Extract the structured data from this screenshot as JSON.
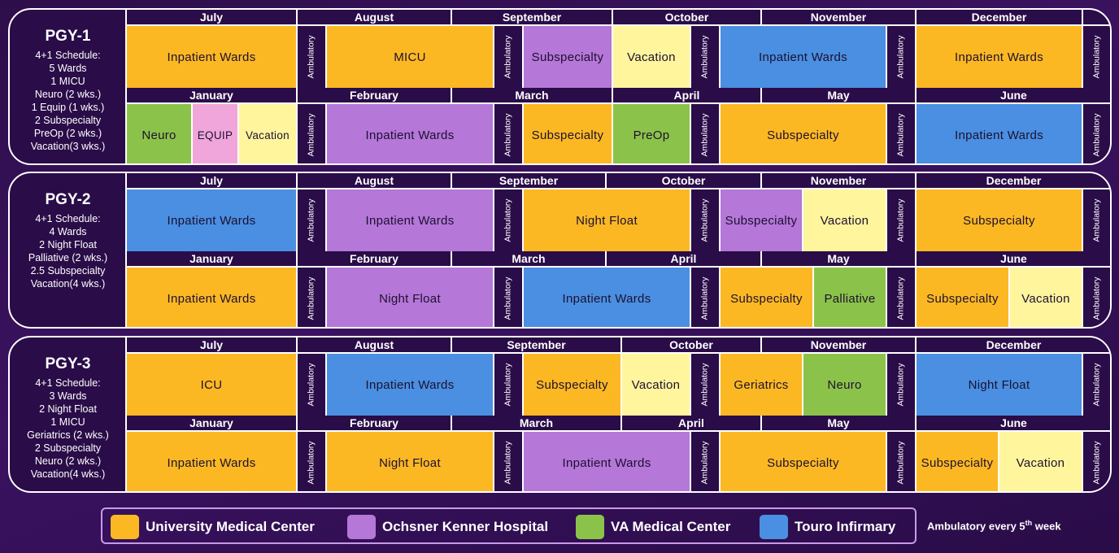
{
  "colors": {
    "umc": "#fcb823",
    "okh": "#b577d8",
    "va": "#8bc34a",
    "touro": "#4a8fe1",
    "vacation": "#fff59d",
    "equip": "#f0a6da"
  },
  "panels": [
    {
      "title": "PGY-1",
      "lines": [
        "4+1 Schedule:",
        "5 Wards",
        "1 MICU",
        "Neuro (2 wks.)",
        "1 Equip (1 wks.)",
        "2 Subspecialty",
        "PreOp (2 wks.)",
        "Vacation(3 wks.)"
      ],
      "rows": [
        {
          "months": [
            "July",
            "August",
            "September",
            "October",
            "November",
            "December"
          ],
          "blocks": [
            {
              "label": "Inpatient Wards",
              "color": "umc"
            },
            {
              "label": "MICU",
              "color": "umc"
            },
            {
              "label": "Subspecialty",
              "color": "okh"
            },
            {
              "label": "Vacation",
              "color": "vacation"
            },
            {
              "label": "Inpatient  Wards",
              "color": "touro"
            },
            {
              "label": "Inpatient Wards",
              "color": "umc"
            }
          ]
        },
        {
          "months": [
            "January",
            "February",
            "March",
            "April",
            "May",
            "June"
          ],
          "blocks": [
            {
              "label": "Neuro",
              "color": "va"
            },
            {
              "label": "EQUIP",
              "color": "equip"
            },
            {
              "label": "Vacation",
              "color": "vacation"
            },
            {
              "label": "Inpatient Wards",
              "color": "okh"
            },
            {
              "label": "Subspecialty",
              "color": "umc"
            },
            {
              "label": "PreOp",
              "color": "va"
            },
            {
              "label": "Subspecialty",
              "color": "umc"
            },
            {
              "label": "Inpatient Wards",
              "color": "touro"
            }
          ]
        }
      ]
    },
    {
      "title": "PGY-2",
      "lines": [
        "4+1 Schedule:",
        "4 Wards",
        "2 Night Float",
        "Palliative (2 wks.)",
        "2.5 Subspecialty",
        "Vacation(4 wks.)"
      ],
      "rows": [
        {
          "months": [
            "July",
            "August",
            "September",
            "October",
            "November",
            "December"
          ],
          "blocks": [
            {
              "label": "Inpatient Wards",
              "color": "touro"
            },
            {
              "label": "Inpatient Wards",
              "color": "okh"
            },
            {
              "label": "Night Float",
              "color": "umc"
            },
            {
              "label": "Subspecialty",
              "color": "okh"
            },
            {
              "label": "Vacation",
              "color": "vacation"
            },
            {
              "label": "Subspecialty",
              "color": "umc"
            }
          ]
        },
        {
          "months": [
            "January",
            "February",
            "March",
            "April",
            "May",
            "June"
          ],
          "blocks": [
            {
              "label": "Inpatient Wards",
              "color": "umc"
            },
            {
              "label": "Night Float",
              "color": "okh"
            },
            {
              "label": "Inpatient Wards",
              "color": "touro"
            },
            {
              "label": "Subspecialty",
              "color": "umc"
            },
            {
              "label": "Palliative",
              "color": "va"
            },
            {
              "label": "Subspecialty",
              "color": "umc"
            },
            {
              "label": "Vacation",
              "color": "vacation"
            }
          ]
        }
      ]
    },
    {
      "title": "PGY-3",
      "lines": [
        "4+1 Schedule:",
        "3 Wards",
        "2 Night Float",
        "1 MICU",
        "Geriatrics (2 wks.)",
        "2 Subspecialty",
        "Neuro (2 wks.)",
        "Vacation(4 wks.)"
      ],
      "rows": [
        {
          "months": [
            "July",
            "August",
            "September",
            "October",
            "November",
            "December"
          ],
          "blocks": [
            {
              "label": "ICU",
              "color": "umc"
            },
            {
              "label": "Inpatient Wards",
              "color": "touro"
            },
            {
              "label": "Subspecialty",
              "color": "umc"
            },
            {
              "label": "Vacation",
              "color": "vacation"
            },
            {
              "label": "Geriatrics",
              "color": "umc"
            },
            {
              "label": "Neuro",
              "color": "va"
            },
            {
              "label": "Night Float",
              "color": "touro"
            }
          ]
        },
        {
          "months": [
            "January",
            "February",
            "March",
            "April",
            "May",
            "June"
          ],
          "blocks": [
            {
              "label": "Inpatient Wards",
              "color": "umc"
            },
            {
              "label": "Night Float",
              "color": "umc"
            },
            {
              "label": "Inpatient Wards",
              "color": "okh"
            },
            {
              "label": "Subspecialty",
              "color": "umc"
            },
            {
              "label": "Subspecialty",
              "color": "umc"
            },
            {
              "label": "Vacation",
              "color": "vacation"
            }
          ]
        }
      ]
    }
  ],
  "ambulatory_label": "Ambulatory",
  "legend": [
    {
      "label": "University Medical Center",
      "color": "umc"
    },
    {
      "label": "Ochsner Kenner Hospital",
      "color": "okh"
    },
    {
      "label": "VA Medical Center",
      "color": "va"
    },
    {
      "label": "Touro Infirmary",
      "color": "touro"
    }
  ],
  "ambulatory_note": {
    "pre": "Ambulatory every 5",
    "sup": "th",
    "post": " week"
  }
}
